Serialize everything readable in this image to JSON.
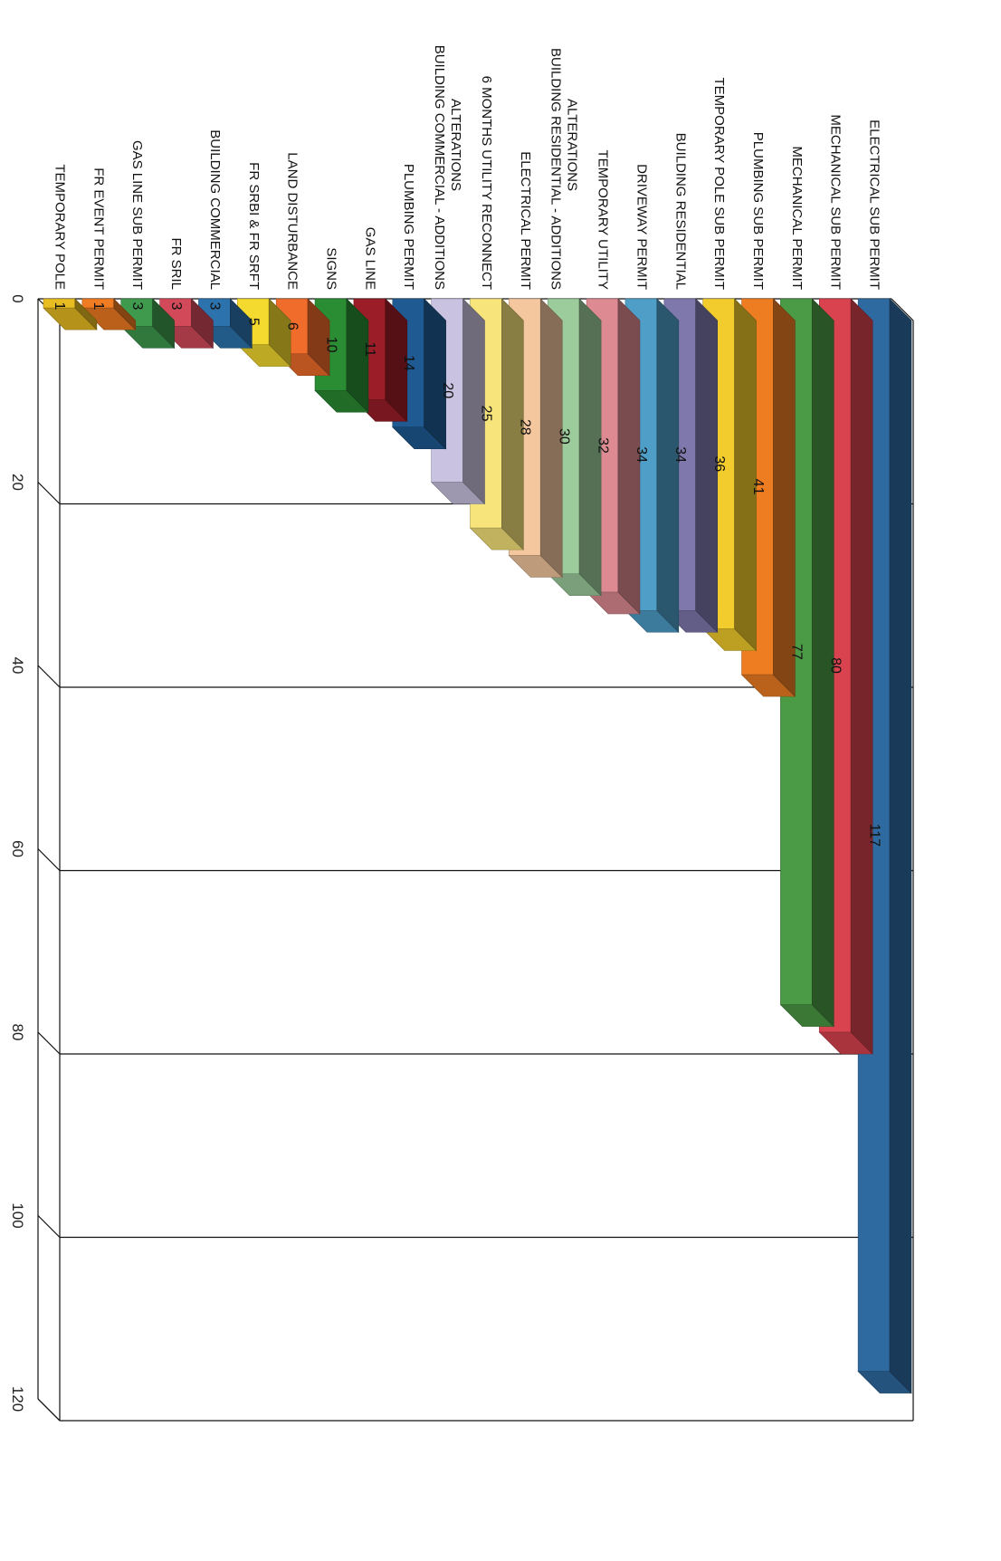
{
  "chart_data": {
    "type": "bar",
    "orientation": "horizontal-3d",
    "categories": [
      "ELECTRICAL SUB PERMIT",
      "MECHANICAL SUB PERMIT",
      "MECHANICAL PERMIT",
      "PLUMBING SUB PERMIT",
      "TEMPORARY POLE SUB PERMIT",
      "BUILDING RESIDENTIAL",
      "DRIVEWAY PERMIT",
      "TEMPORARY UTILITY",
      "BUILDING RESIDENTIAL - ADDITIONS ALTERATIONS",
      "ELECTRICAL PERMIT",
      "6 MONTHS UTILITY RECONNECT",
      "BUILDING COMMERCIAL - ADDITIONS ALTERATIONS",
      "PLUMBING PERMIT",
      "GAS LINE",
      "SIGNS",
      "LAND DISTURBANCE",
      "FR SRBI & FR SRFT",
      "BUILDING COMMERCIAL",
      "FR SRIL",
      "GAS LINE SUB PERMIT",
      "FR EVENT PERMIT",
      "TEMPORARY POLE"
    ],
    "values": [
      117,
      80,
      77,
      41,
      36,
      34,
      34,
      32,
      30,
      28,
      25,
      20,
      14,
      11,
      10,
      6,
      5,
      3,
      3,
      3,
      1,
      1
    ],
    "value_labels": [
      "117",
      "80",
      "77",
      "41",
      "36",
      "34",
      "34",
      "32",
      "30",
      "28",
      "25",
      "20",
      "14",
      "11",
      "10",
      "6",
      "5",
      "3",
      "3",
      "3",
      "1",
      "1"
    ],
    "bar_colors": [
      "#2e6aa0",
      "#d9434f",
      "#4b9a45",
      "#ee7d22",
      "#f2cc2c",
      "#7e78ad",
      "#4e9ec8",
      "#dd8a92",
      "#9ccc9c",
      "#f4c79e",
      "#f7e47a",
      "#c9c2e0",
      "#1f5a92",
      "#9a1d28",
      "#2a8c33",
      "#ef6c2a",
      "#f4d92e",
      "#2c73ae",
      "#d24a5a",
      "#3f9a4e",
      "#ef7b22",
      "#e8bd22"
    ],
    "axis": {
      "ticks": [
        "0",
        "20",
        "40",
        "60",
        "80",
        "100",
        "120"
      ],
      "range": [
        0,
        120
      ]
    },
    "grid": true,
    "title": ""
  }
}
